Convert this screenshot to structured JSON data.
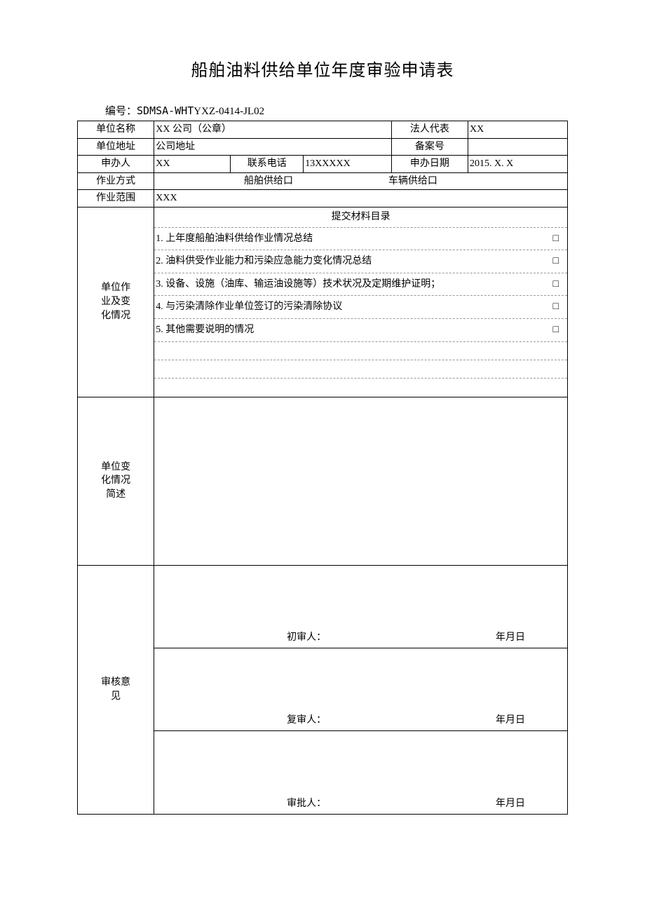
{
  "title": "船舶油料供给单位年度审验申请表",
  "form_number_label": "编号：",
  "form_number_prefix": "SDMSA-WHT",
  "form_number_suffix": "YXZ-0414-JL02",
  "rows": {
    "unit_name": {
      "label": "单位名称",
      "value": "XX 公司（公章）"
    },
    "legal_rep": {
      "label": "法人代表",
      "value": "XX"
    },
    "unit_address": {
      "label": "单位地址",
      "value": "公司地址"
    },
    "record_no": {
      "label": "备案号",
      "value": ""
    },
    "applicant": {
      "label": "申办人",
      "value": "XX"
    },
    "phone": {
      "label": "联系电话",
      "value": "13XXXXX"
    },
    "apply_date": {
      "label": "申办日期",
      "value": "2015. X. X"
    },
    "op_mode": {
      "label": "作业方式",
      "opt1": "船舶供给口",
      "opt2": "车辆供给口"
    },
    "op_scope": {
      "label": "作业范围",
      "value": "XXX"
    }
  },
  "materials": {
    "label_line1": "单位作",
    "label_line2": "业及变",
    "label_line3": "化情况",
    "header": "提交材料目录",
    "items": [
      {
        "text": "1. 上年度船舶油料供给作业情况总结",
        "checkbox": "□"
      },
      {
        "text": "2. 油料供受作业能力和污染应急能力变化情况总结",
        "checkbox": "□"
      },
      {
        "text": "3. 设备、设施（油库、输运油设施等）技术状况及定期维护证明；",
        "checkbox": "□"
      },
      {
        "text": "4. 与污染清除作业单位签订的污染清除协议",
        "checkbox": "□"
      },
      {
        "text": "5. 其他需要说明的情况",
        "checkbox": "□"
      }
    ],
    "empty_rows": 3
  },
  "change_summary": {
    "label_line1": "单位变",
    "label_line2": "化情况",
    "label_line3": "简述"
  },
  "review": {
    "label_line1": "审核意",
    "label_line2": "见",
    "blocks": [
      {
        "role": "初审人：",
        "date": "年月日"
      },
      {
        "role": "复审人：",
        "date": "年月日"
      },
      {
        "role": "审批人：",
        "date": "年月日"
      }
    ]
  },
  "colors": {
    "text": "#000000",
    "background": "#ffffff",
    "border": "#000000",
    "dashed": "#999999"
  }
}
